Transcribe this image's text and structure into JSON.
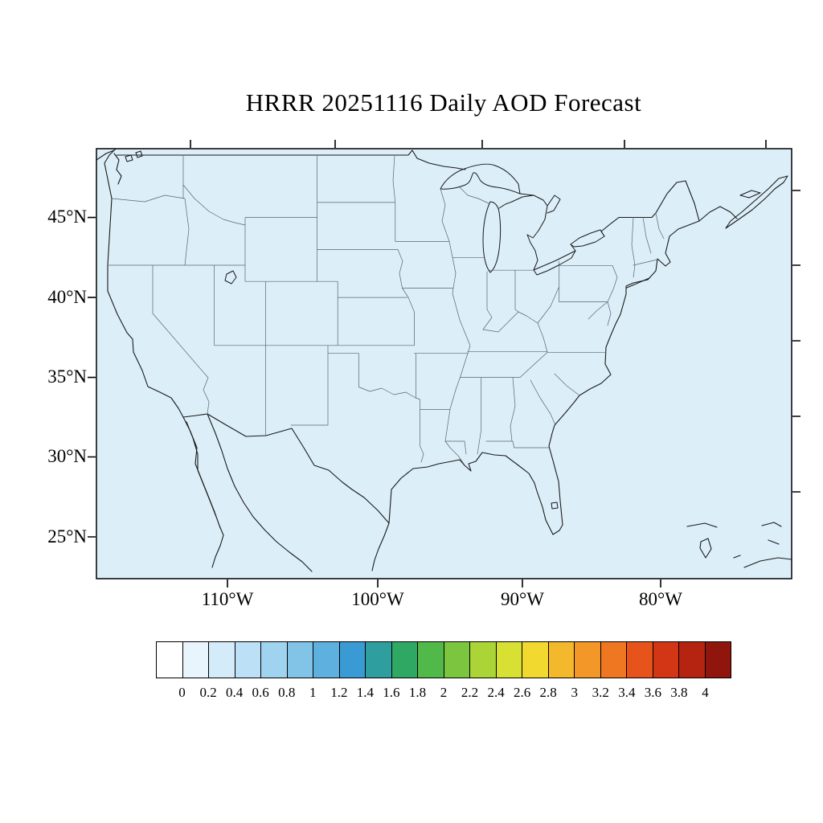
{
  "title": "HRRR 20251116 Daily AOD Forecast",
  "axes": {
    "lat_labels": [
      "45°N",
      "40°N",
      "35°N",
      "30°N",
      "25°N"
    ],
    "lon_labels": [
      "110°W",
      "100°W",
      "90°W",
      "80°W"
    ]
  },
  "map": {
    "background": "#dceef8",
    "coast_color": "#1a1a1a",
    "state_color": "#5a6470",
    "frame_color": "#000000"
  },
  "colorbar": {
    "labels": [
      "0",
      "0.2",
      "0.4",
      "0.6",
      "0.8",
      "1",
      "1.2",
      "1.4",
      "1.6",
      "1.8",
      "2",
      "2.2",
      "2.4",
      "2.6",
      "2.8",
      "3",
      "3.2",
      "3.4",
      "3.6",
      "3.8",
      "4"
    ],
    "colors": [
      "#ffffff",
      "#e8f5fc",
      "#d4ebf9",
      "#bce0f5",
      "#a0d3ef",
      "#81c4e8",
      "#5eb1df",
      "#3a9ad3",
      "#2f9e9e",
      "#2fa864",
      "#51b84a",
      "#7cc63f",
      "#abd437",
      "#d9e034",
      "#f2d930",
      "#f4b82c",
      "#f39729",
      "#ef7722",
      "#e6531b",
      "#d33615",
      "#b52311",
      "#8f150d"
    ]
  },
  "chart_data": {
    "type": "heatmap",
    "title": "HRRR 20251116 Daily AOD Forecast",
    "field": "Aerosol Optical Depth (AOD) daily forecast",
    "region": "Continental United States map (Lambert-style projection)",
    "x_tick_labels": [
      "110°W",
      "100°W",
      "90°W",
      "80°W"
    ],
    "y_tick_labels": [
      "45°N",
      "40°N",
      "35°N",
      "30°N",
      "25°N"
    ],
    "colorbar_levels": [
      0,
      0.2,
      0.4,
      0.6,
      0.8,
      1,
      1.2,
      1.4,
      1.6,
      1.8,
      2,
      2.2,
      2.4,
      2.6,
      2.8,
      3,
      3.2,
      3.4,
      3.6,
      3.8,
      4
    ],
    "colorbar_colors": [
      "#ffffff",
      "#e8f5fc",
      "#d4ebf9",
      "#bce0f5",
      "#a0d3ef",
      "#81c4e8",
      "#5eb1df",
      "#3a9ad3",
      "#2f9e9e",
      "#2fa864",
      "#51b84a",
      "#7cc63f",
      "#abd437",
      "#d9e034",
      "#f2d930",
      "#f4b82c",
      "#f39729",
      "#ef7722",
      "#e6531b",
      "#d33615",
      "#b52311",
      "#8f150d"
    ],
    "observed_field_pattern": "uniform near-zero AOD (lowest color bin, pale blue/white) across the entire domain",
    "legend_position": "horizontal colorbar below map",
    "grid": false
  }
}
